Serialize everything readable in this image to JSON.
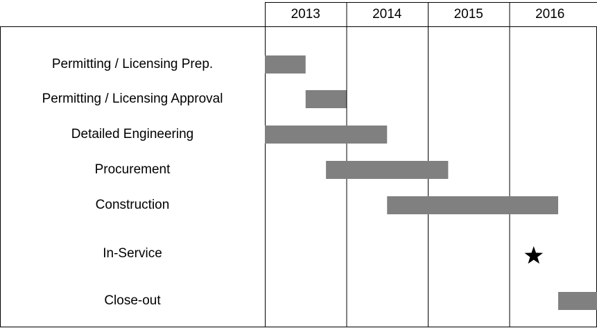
{
  "chart_data": {
    "type": "gantt",
    "categories": [
      "2013",
      "2014",
      "2015",
      "2016"
    ],
    "xlim": [
      2013,
      2017
    ],
    "color": "#808080",
    "tasks": [
      {
        "name": "Permitting / Licensing Prep.",
        "start": 2013.0,
        "end": 2013.5
      },
      {
        "name": "Permitting / Licensing Approval",
        "start": 2013.5,
        "end": 2014.0
      },
      {
        "name": "Detailed Engineering",
        "start": 2013.0,
        "end": 2014.5
      },
      {
        "name": "Procurement",
        "start": 2013.75,
        "end": 2015.25
      },
      {
        "name": "Construction",
        "start": 2014.5,
        "end": 2016.6
      },
      {
        "name": "In-Service",
        "milestone": 2016.3
      },
      {
        "name": "Close-out",
        "start": 2016.6,
        "end": 2017.1
      }
    ]
  }
}
